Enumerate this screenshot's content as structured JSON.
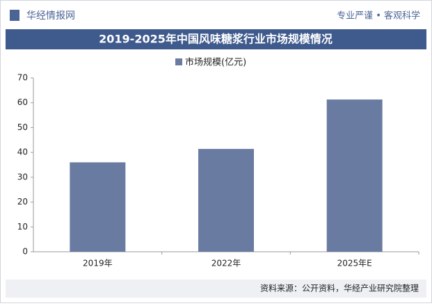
{
  "header": {
    "brand": "华经情报网",
    "slogan": "专业严谨 • 客观科学"
  },
  "chart_data": {
    "type": "bar",
    "title": "2019-2025年中国风味糖浆行业市场规模情况",
    "categories": [
      "2019年",
      "2022年",
      "2025年E"
    ],
    "series": [
      {
        "name": "市场规模(亿元)",
        "color": "#6a7ba2",
        "values": [
          36,
          41.4,
          61.3
        ]
      }
    ],
    "ylim": [
      0,
      70
    ],
    "yticks": [
      0,
      10,
      20,
      30,
      40,
      50,
      60,
      70
    ],
    "grid": false
  },
  "footer": {
    "source": "资料来源：公开资料，华经产业研究院整理"
  }
}
